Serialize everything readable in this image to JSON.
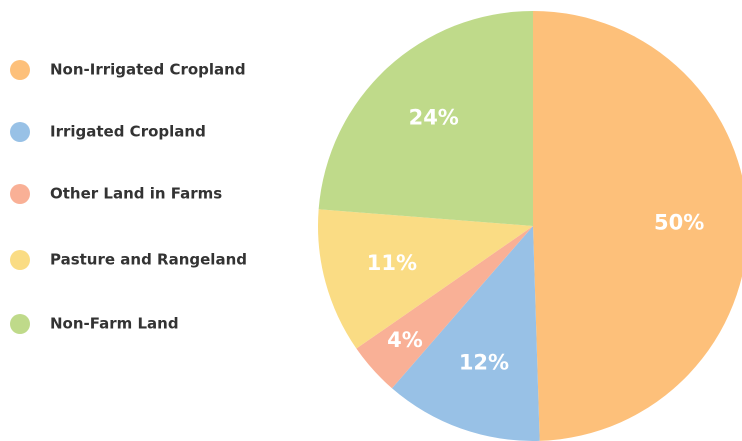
{
  "chart_data": {
    "type": "pie",
    "categories": [
      "Non-Irrigated Cropland",
      "Irrigated Cropland",
      "Other Land in Farms",
      "Pasture and Rangeland",
      "Non-Farm Land"
    ],
    "values": [
      50,
      12,
      4,
      11,
      24
    ],
    "value_labels": [
      "50%",
      "12%",
      "4%",
      "11%",
      "24%"
    ],
    "colors": [
      "#fdc07a",
      "#98c1e6",
      "#f9b096",
      "#fadc84",
      "#bfda8a"
    ]
  }
}
